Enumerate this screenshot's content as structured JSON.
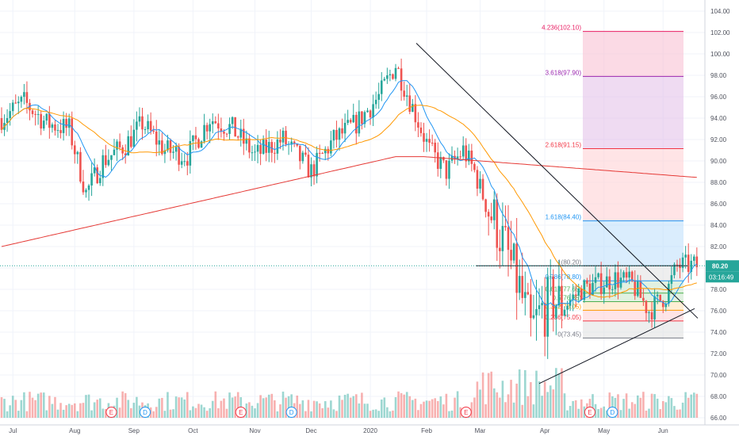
{
  "chart_data": {
    "type": "candlestick",
    "title": "",
    "ylabel": "",
    "xlabel": "",
    "ylim": [
      66.0,
      105.0
    ],
    "y_ticks": [
      "66.00",
      "68.00",
      "70.00",
      "72.00",
      "74.00",
      "76.00",
      "78.00",
      "80.00",
      "82.00",
      "84.00",
      "86.00",
      "88.00",
      "90.00",
      "92.00",
      "94.00",
      "96.00",
      "98.00",
      "100.00",
      "102.00",
      "104.00"
    ],
    "x_labels": [
      {
        "label": "Jul",
        "bar": 4
      },
      {
        "label": "Aug",
        "bar": 26
      },
      {
        "label": "Sep",
        "bar": 47
      },
      {
        "label": "Oct",
        "bar": 68
      },
      {
        "label": "Nov",
        "bar": 90
      },
      {
        "label": "Dec",
        "bar": 110
      },
      {
        "label": "2020",
        "bar": 131
      },
      {
        "label": "Feb",
        "bar": 151
      },
      {
        "label": "Mar",
        "bar": 170
      },
      {
        "label": "Apr",
        "bar": 193
      },
      {
        "label": "May",
        "bar": 214
      },
      {
        "label": "Jun",
        "bar": 235
      }
    ],
    "last_price": {
      "value": 80.2,
      "label": "80.20",
      "countdown": "03:16:49"
    },
    "fib_levels": [
      {
        "label": "4.236(102.10)",
        "value": 102.1,
        "color": "#e91e63"
      },
      {
        "label": "3.618(97.90)",
        "value": 97.9,
        "color": "#9c27b0"
      },
      {
        "label": "2.618(91.15)",
        "value": 91.15,
        "color": "#f23645"
      },
      {
        "label": "1.618(84.40)",
        "value": 84.4,
        "color": "#2196f3"
      },
      {
        "label": "1(80.20)",
        "value": 80.2,
        "color": "#787b86"
      },
      {
        "label": "0.786(78.80)",
        "value": 78.8,
        "color": "#2196f3"
      },
      {
        "label": "0.618(77.65)",
        "value": 77.65,
        "color": "#4caf50"
      },
      {
        "label": "0.5(76.85)",
        "value": 76.85,
        "color": "#4caf50"
      },
      {
        "label": "0.382(76.05)",
        "value": 76.05,
        "color": "#ff9800"
      },
      {
        "label": "0.236(75.05)",
        "value": 75.05,
        "color": "#f23645"
      },
      {
        "label": "0(73.45)",
        "value": 73.45,
        "color": "#787b86"
      }
    ],
    "events": [
      {
        "label": "E",
        "bar": 39,
        "color": "#f23645"
      },
      {
        "label": "D",
        "bar": 51,
        "color": "#2196f3"
      },
      {
        "label": "E",
        "bar": 85,
        "color": "#f23645"
      },
      {
        "label": "D",
        "bar": 103,
        "color": "#2196f3"
      },
      {
        "label": "E",
        "bar": 165,
        "color": "#f23645"
      },
      {
        "label": "E",
        "bar": 209,
        "color": "#f23645"
      },
      {
        "label": "D",
        "bar": 217,
        "color": "#2196f3"
      }
    ],
    "colors": {
      "up": "#26a69a",
      "down": "#ef5350",
      "ma_fast": "#2196f3",
      "ma_mid": "#ff9800",
      "ma_slow": "#e53935",
      "trendline": "#131722"
    }
  }
}
